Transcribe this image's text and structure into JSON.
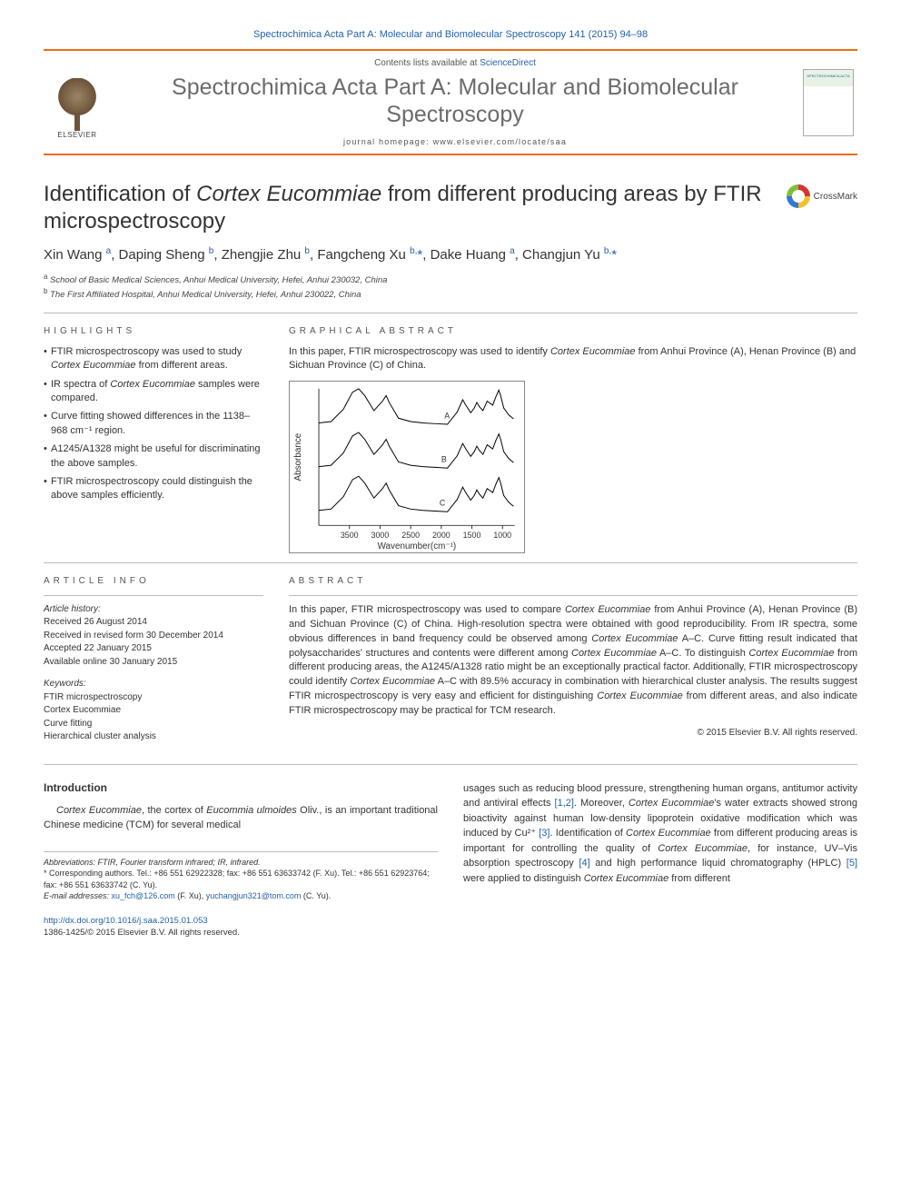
{
  "header": {
    "citation": "Spectrochimica Acta Part A: Molecular and Biomolecular Spectroscopy 141 (2015) 94–98",
    "contents_prefix": "Contents lists available at ",
    "contents_link": "ScienceDirect",
    "journal_title": "Spectrochimica Acta Part A: Molecular and Biomolecular Spectroscopy",
    "homepage_prefix": "journal homepage: ",
    "homepage_url": "www.elsevier.com/locate/saa",
    "elsevier": "ELSEVIER"
  },
  "crossmark": "CrossMark",
  "title_pre": "Identification of ",
  "title_ital": "Cortex Eucommiae",
  "title_post": " from different producing areas by FTIR microspectroscopy",
  "authors_html": "Xin Wang <sup>a</sup>, Daping Sheng <sup>b</sup>, Zhengjie Zhu <sup>b</sup>, Fangcheng Xu <sup>b,</sup><span class='star'>*</span>, Dake Huang <sup>a</sup>, Changjun Yu <sup>b,</sup><span class='star'>*</span>",
  "affiliations": [
    {
      "sup": "a",
      "text": "School of Basic Medical Sciences, Anhui Medical University, Hefei, Anhui 230032, China"
    },
    {
      "sup": "b",
      "text": "The First Affiliated Hospital, Anhui Medical University, Hefei, Anhui 230022, China"
    }
  ],
  "labels": {
    "highlights": "HIGHLIGHTS",
    "graphical_abstract": "GRAPHICAL ABSTRACT",
    "article_info": "ARTICLE INFO",
    "abstract": "ABSTRACT",
    "introduction": "Introduction"
  },
  "highlights": [
    {
      "pre": "FTIR microspectroscopy was used to study ",
      "ital": "Cortex Eucommiae",
      "post": " from different areas."
    },
    {
      "pre": "IR spectra of ",
      "ital": "Cortex Eucommiae",
      "post": " samples were compared."
    },
    {
      "pre": "Curve fitting showed differences in the 1138–968 cm⁻¹ region.",
      "ital": "",
      "post": ""
    },
    {
      "pre": "A1245/A1328 might be useful for discriminating the above samples.",
      "ital": "",
      "post": ""
    },
    {
      "pre": "FTIR microspectroscopy could distinguish the above samples efficiently.",
      "ital": "",
      "post": ""
    }
  ],
  "graphical_abstract_intro": {
    "pre": "In this paper, FTIR microspectroscopy was used to identify ",
    "ital": "Cortex Eucommiae",
    "post": " from Anhui Province (A), Henan Province (B) and Sichuan Province (C) of China."
  },
  "spectrum": {
    "xlim": [
      4000,
      800
    ],
    "xticks": [
      3500,
      3000,
      2500,
      2000,
      1500,
      1000
    ],
    "xlabel": "Wavenumber(cm⁻¹)",
    "ylabel": "Absorbance",
    "line_color": "#000000",
    "axis_color": "#333333",
    "background": "#ffffff",
    "curves": {
      "A": {
        "label": "A",
        "offset": 0.7,
        "label_x": 1950
      },
      "B": {
        "label": "B",
        "offset": 0.38,
        "label_x": 2000
      },
      "C": {
        "label": "C",
        "offset": 0.06,
        "label_x": 2030
      }
    },
    "shape": [
      [
        4000,
        0.1
      ],
      [
        3800,
        0.12
      ],
      [
        3600,
        0.3
      ],
      [
        3450,
        0.55
      ],
      [
        3350,
        0.6
      ],
      [
        3250,
        0.5
      ],
      [
        3100,
        0.28
      ],
      [
        2960,
        0.42
      ],
      [
        2900,
        0.5
      ],
      [
        2850,
        0.4
      ],
      [
        2700,
        0.17
      ],
      [
        2500,
        0.12
      ],
      [
        2300,
        0.1
      ],
      [
        2100,
        0.09
      ],
      [
        1900,
        0.08
      ],
      [
        1740,
        0.26
      ],
      [
        1650,
        0.44
      ],
      [
        1600,
        0.36
      ],
      [
        1520,
        0.25
      ],
      [
        1460,
        0.32
      ],
      [
        1420,
        0.4
      ],
      [
        1380,
        0.34
      ],
      [
        1320,
        0.28
      ],
      [
        1250,
        0.42
      ],
      [
        1160,
        0.36
      ],
      [
        1110,
        0.48
      ],
      [
        1060,
        0.58
      ],
      [
        1030,
        0.5
      ],
      [
        980,
        0.32
      ],
      [
        900,
        0.22
      ],
      [
        820,
        0.16
      ]
    ],
    "fontsize_axis": 9,
    "fontsize_label": 10
  },
  "article_info": {
    "history_hdr": "Article history:",
    "history": [
      "Received 26 August 2014",
      "Received in revised form 30 December 2014",
      "Accepted 22 January 2015",
      "Available online 30 January 2015"
    ],
    "keywords_hdr": "Keywords:",
    "keywords": [
      "FTIR microspectroscopy",
      "Cortex Eucommiae",
      "Curve fitting",
      "Hierarchical cluster analysis"
    ]
  },
  "abstract_html": "In this paper, FTIR microspectroscopy was used to compare <span class='ital'>Cortex Eucommiae</span> from Anhui Province (A), Henan Province (B) and Sichuan Province (C) of China. High-resolution spectra were obtained with good reproducibility. From IR spectra, some obvious differences in band frequency could be observed among <span class='ital'>Cortex Eucommiae</span> A–C. Curve fitting result indicated that polysaccharides' structures and contents were different among <span class='ital'>Cortex Eucommiae</span> A–C. To distinguish <span class='ital'>Cortex Eucommiae</span> from different producing areas, the A1245/A1328 ratio might be an exceptionally practical factor. Additionally, FTIR microspectroscopy could identify <span class='ital'>Cortex Eucommiae</span> A–C with 89.5% accuracy in combination with hierarchical cluster analysis. The results suggest FTIR microspectroscopy is very easy and efficient for distinguishing <span class='ital'>Cortex Eucommiae</span> from different areas, and also indicate FTIR microspectroscopy may be practical for TCM research.",
  "copyright": "© 2015 Elsevier B.V. All rights reserved.",
  "intro_left_html": "<span class='ital'>Cortex Eucommiae</span>, the cortex of <span class='ital'>Eucommia ulmoides</span> Oliv., is an important traditional Chinese medicine (TCM) for several medical",
  "intro_right_html": "usages such as reducing blood pressure, strengthening human organs, antitumor activity and antiviral effects <a>[1,2]</a>. Moreover, <span class='ital'>Cortex Eucommiae</span>'s water extracts showed strong bioactivity against human low-density lipoprotein oxidative modification which was induced by Cu²⁺ <a>[3]</a>. Identification of <span class='ital'>Cortex Eucommiae</span> from different producing areas is important for controlling the quality of <span class='ital'>Cortex Eucommiae</span>, for instance, UV–Vis absorption spectroscopy <a>[4]</a> and high performance liquid chromatography (HPLC) <a>[5]</a> were applied to distinguish <span class='ital'>Cortex Eucommiae</span> from different",
  "footnotes": {
    "abbrev": "Abbreviations: FTIR, Fourier transform infrared; IR, infrared.",
    "corr": "* Corresponding authors. Tel.: +86 551 62922328; fax: +86 551 63633742 (F. Xu). Tel.: +86 551 62923764; fax: +86 551 63633742 (C. Yu).",
    "email_label": "E-mail addresses: ",
    "email1": "xu_fch@126.com",
    "email1_who": " (F. Xu), ",
    "email2": "yuchangjun321@tom.com",
    "email2_who": " (C. Yu)."
  },
  "doi": {
    "url": "http://dx.doi.org/10.1016/j.saa.2015.01.053",
    "issn": "1386-1425/© 2015 Elsevier B.V. All rights reserved."
  },
  "colors": {
    "orange": "#ec6e15",
    "link": "#2461aa",
    "text": "#333333"
  }
}
